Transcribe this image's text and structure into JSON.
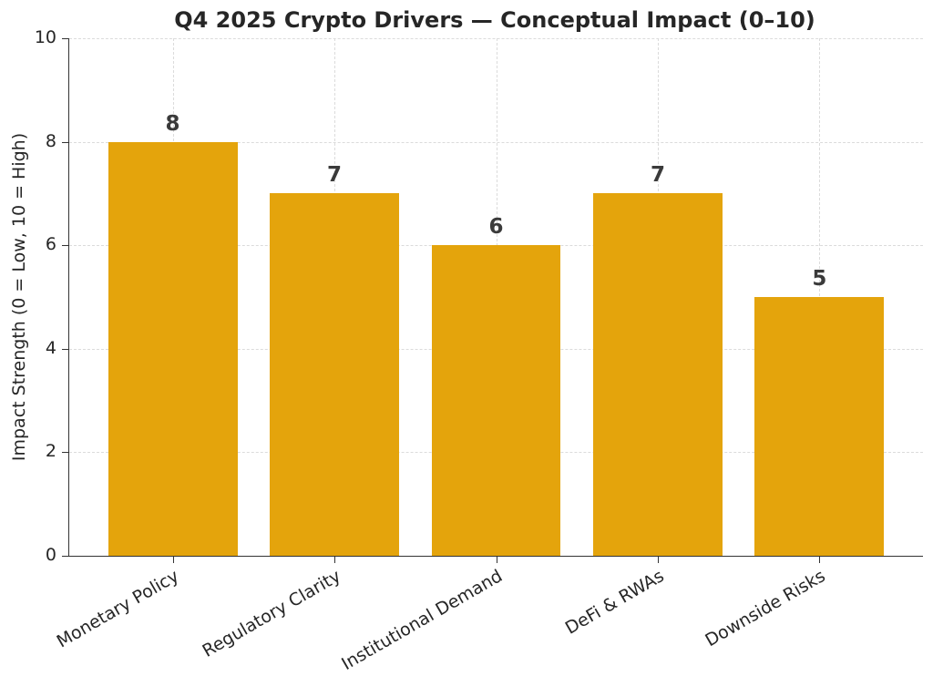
{
  "chart_data": {
    "type": "bar",
    "title": "Q4 2025 Crypto Drivers — Conceptual Impact (0–10)",
    "categories": [
      "Monetary Policy",
      "Regulatory Clarity",
      "Institutional Demand",
      "DeFi & RWAs",
      "Downside Risks"
    ],
    "values": [
      8,
      7,
      6,
      7,
      5
    ],
    "value_labels": [
      "8",
      "7",
      "6",
      "7",
      "5"
    ],
    "xlabel": "",
    "ylabel": "Impact Strength (0 = Low, 10 = High)",
    "ylim": [
      0,
      10
    ],
    "yticks": [
      0,
      2,
      4,
      6,
      8,
      10
    ],
    "xtick_rotation_deg": 30,
    "legend_position": "none",
    "grid": {
      "horizontal": true,
      "vertical": true,
      "line_style": "dashed"
    },
    "spines": {
      "top": false,
      "right": false,
      "left": true,
      "bottom": true
    },
    "style": {
      "bar_color": "#E4A40C",
      "grid_color": "#DBDBDB",
      "axis_color": "#333333",
      "text_color": "#262626",
      "value_label_color": "#3A3A3A",
      "background": "#FFFFFF"
    }
  }
}
